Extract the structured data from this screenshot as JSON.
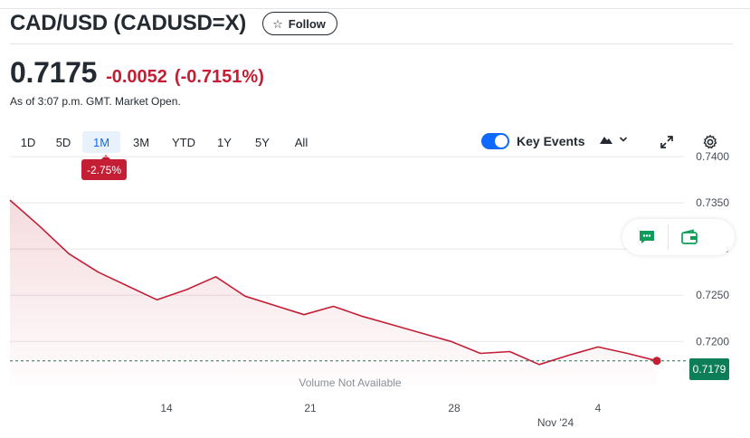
{
  "header": {
    "title": "CAD/USD (CADUSD=X)",
    "follow_label": "Follow",
    "follow_icon": "star-outline-icon"
  },
  "quote": {
    "price": "0.7175",
    "change": "-0.0052",
    "change_percent": "(-0.7151%)",
    "as_of": "As of 3:07 p.m. GMT. Market Open."
  },
  "range_tabs": [
    {
      "label": "1D"
    },
    {
      "label": "5D"
    },
    {
      "label": "1M",
      "active": true
    },
    {
      "label": "3M"
    },
    {
      "label": "YTD"
    },
    {
      "label": "1Y"
    },
    {
      "label": "5Y"
    },
    {
      "label": "All"
    }
  ],
  "performance_badge": "-2.75%",
  "key_events": {
    "label": "Key Events",
    "enabled": true
  },
  "colors": {
    "negative": "#c31e34",
    "accent": "#0f69ff",
    "last_price_tag": "#0d7e58"
  },
  "chart_data": {
    "type": "area",
    "x_tick_labels": [
      "14",
      "21",
      "28",
      "4"
    ],
    "x_secondary_label": "Nov '24",
    "y_tick_labels": [
      "0.7400",
      "0.7350",
      "0.7300",
      "0.7250",
      "0.7200"
    ],
    "ylim": [
      0.7165,
      0.7405
    ],
    "grid": true,
    "volume_text": "Volume Not Available",
    "last_price_label": "0.7179",
    "last_price": 0.7179,
    "series": [
      {
        "values": [
          0.7353,
          0.7325,
          0.7295,
          0.7275,
          0.726,
          0.7245,
          0.7256,
          0.727,
          0.7249,
          0.7239,
          0.7229,
          0.7238,
          0.7227,
          0.7218,
          0.7209,
          0.72,
          0.7187,
          0.7189,
          0.7175,
          0.7185,
          0.7194,
          0.7187,
          0.7179
        ]
      }
    ]
  }
}
